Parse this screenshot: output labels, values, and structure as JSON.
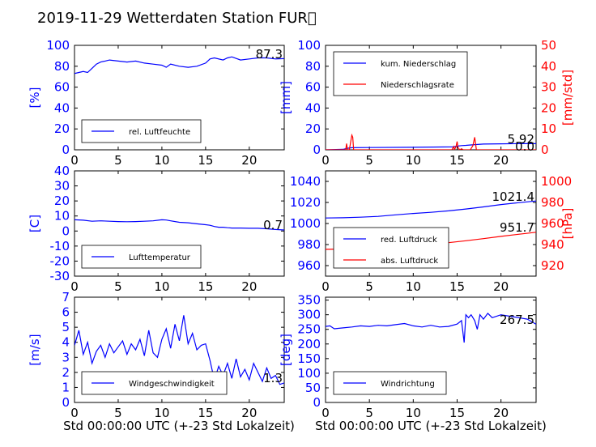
{
  "colors": {
    "left_axis": "#0000ff",
    "right_axis": "#ff0000",
    "line_blue": "#0000ff",
    "line_red": "#ff0000"
  },
  "title": "2019-11-29 Wetterdaten Station FUR\u0000",
  "xlabel": "Std 00:00:00 UTC (+-23 Std Lokalzeit)",
  "chart_data": [
    {
      "id": "humidity",
      "type": "line",
      "xlim": [
        0,
        24
      ],
      "x_ticks": [
        0,
        5,
        10,
        15,
        20
      ],
      "ylim": [
        0,
        100
      ],
      "y_ticks": [
        0,
        20,
        40,
        60,
        80,
        100
      ],
      "ylabel": "[%]",
      "legend": "bottom-left",
      "value_label": "87.3",
      "series": [
        {
          "name": "rel. Luftfeuchte",
          "color": "#0000ff",
          "axis": "left",
          "x": [
            0,
            0.5,
            1,
            1.5,
            2,
            2.5,
            3,
            3.5,
            4,
            5,
            6,
            7,
            8,
            9,
            10,
            10.5,
            11,
            12,
            13,
            14,
            15,
            15.5,
            16,
            17,
            17.5,
            18,
            19,
            20,
            21,
            22,
            23,
            24
          ],
          "y": [
            73,
            74,
            75,
            74,
            78,
            82,
            84,
            85,
            86,
            85,
            84,
            85,
            83,
            82,
            81,
            79,
            82,
            80,
            79,
            80,
            83,
            87,
            88,
            86,
            88,
            89,
            86,
            87,
            88,
            88,
            87,
            87.3
          ]
        }
      ]
    },
    {
      "id": "precip",
      "type": "line",
      "xlim": [
        0,
        24
      ],
      "x_ticks": [
        0,
        5,
        10,
        15,
        20
      ],
      "ylim": [
        0,
        100
      ],
      "y_ticks": [
        0,
        20,
        40,
        60,
        80,
        100
      ],
      "ylabel": "[mm]",
      "y2lim": [
        0,
        50
      ],
      "y2_ticks": [
        0,
        10,
        20,
        30,
        40,
        50
      ],
      "y2label": "[mm/std]",
      "legend": "top-left",
      "value_label": "5.92",
      "value_label2": "0.0",
      "series": [
        {
          "name": "kum. Niederschlag",
          "color": "#0000ff",
          "axis": "left",
          "x": [
            0,
            2,
            2.5,
            3,
            5,
            10,
            14.5,
            15,
            15.5,
            16,
            17,
            18,
            20,
            22,
            24
          ],
          "y": [
            0,
            0.5,
            1.5,
            2,
            2.2,
            2.4,
            2.8,
            3.5,
            4,
            4.3,
            5,
            5.5,
            5.7,
            5.9,
            5.92
          ]
        },
        {
          "name": "Niederschlagsrate",
          "color": "#ff0000",
          "axis": "right",
          "x": [
            0,
            2,
            2.3,
            2.4,
            2.5,
            2.7,
            2.8,
            3,
            3.1,
            3.2,
            3.4,
            5,
            10,
            14.4,
            14.6,
            14.7,
            14.9,
            15,
            15.1,
            15.3,
            15.5,
            15.7,
            16,
            16.5,
            16.8,
            17,
            17.2,
            17.5,
            20,
            24
          ],
          "y": [
            0,
            0,
            0,
            3,
            0,
            0,
            2,
            7,
            6,
            0,
            0,
            0,
            0,
            0,
            1.5,
            0,
            2,
            4,
            1,
            0,
            0.5,
            0,
            0,
            0,
            2,
            6,
            0,
            0,
            0,
            0
          ]
        }
      ]
    },
    {
      "id": "temperature",
      "type": "line",
      "xlim": [
        0,
        24
      ],
      "x_ticks": [
        0,
        5,
        10,
        15,
        20
      ],
      "ylim": [
        -30,
        40
      ],
      "y_ticks": [
        -30,
        -20,
        -10,
        0,
        10,
        20,
        30,
        40
      ],
      "ylabel": "[C]",
      "legend": "bottom-left",
      "value_label": "0.7",
      "series": [
        {
          "name": "Lufttemperatur",
          "color": "#0000ff",
          "axis": "left",
          "x": [
            0,
            1,
            2,
            3,
            4,
            5,
            6,
            7,
            8,
            9,
            10,
            10.5,
            11,
            12,
            13,
            14,
            15,
            15.5,
            16,
            16.5,
            17,
            17.5,
            18,
            19,
            20,
            21,
            22,
            23,
            24
          ],
          "y": [
            7.5,
            7.2,
            6.5,
            6.8,
            6.5,
            6.3,
            6.2,
            6.3,
            6.5,
            6.8,
            7.5,
            7.3,
            6.8,
            5.8,
            5.5,
            4.8,
            4.2,
            3.8,
            3,
            2.5,
            2.5,
            2.2,
            2,
            2,
            1.8,
            1.8,
            1.5,
            1,
            0.7
          ]
        }
      ]
    },
    {
      "id": "pressure",
      "type": "line",
      "xlim": [
        0,
        24
      ],
      "x_ticks": [
        0,
        5,
        10,
        15,
        20
      ],
      "ylim": [
        950,
        1050
      ],
      "y_ticks": [
        960,
        980,
        1000,
        1020,
        1040
      ],
      "ylabel": "",
      "y2lim": [
        910,
        1010
      ],
      "y2_ticks": [
        920,
        940,
        960,
        980,
        1000
      ],
      "y2label": "[hPa]",
      "legend": "bottom-left",
      "value_label": "1021.4",
      "value_label2": "951.7",
      "series": [
        {
          "name": "red. Luftdruck",
          "color": "#0000ff",
          "axis": "left",
          "x": [
            0,
            2,
            4,
            6,
            8,
            10,
            12,
            14,
            16,
            18,
            20,
            22,
            24
          ],
          "y": [
            1005.2,
            1005.5,
            1006,
            1006.8,
            1008.2,
            1009.5,
            1010.6,
            1012,
            1013.8,
            1015.8,
            1018,
            1019.8,
            1021.4
          ]
        },
        {
          "name": "abs. Luftdruck",
          "color": "#ff0000",
          "axis": "right",
          "x": [
            0,
            2,
            4,
            6,
            8,
            10,
            12,
            14,
            16,
            18,
            20,
            22,
            24
          ],
          "y": [
            935.5,
            935.8,
            936.3,
            937,
            938.2,
            939.2,
            940.3,
            941.8,
            943.6,
            945.6,
            947.8,
            949.8,
            951.7
          ]
        }
      ]
    },
    {
      "id": "windspeed",
      "type": "line",
      "xlim": [
        0,
        24
      ],
      "x_ticks": [
        0,
        5,
        10,
        15,
        20
      ],
      "ylim": [
        0,
        7
      ],
      "y_ticks": [
        0,
        1,
        2,
        3,
        4,
        5,
        6,
        7
      ],
      "ylabel": "[m/s]",
      "legend": "bottom-left",
      "value_label": "1.3",
      "series": [
        {
          "name": "Windgeschwindigkeit",
          "color": "#0000ff",
          "axis": "left",
          "x": [
            0,
            0.5,
            1,
            1.5,
            2,
            2.5,
            3,
            3.5,
            4,
            4.5,
            5,
            5.5,
            6,
            6.5,
            7,
            7.5,
            8,
            8.5,
            9,
            9.5,
            10,
            10.5,
            11,
            11.5,
            12,
            12.5,
            13,
            13.5,
            14,
            14.5,
            15,
            15.5,
            16,
            16.5,
            17,
            17.5,
            18,
            18.5,
            19,
            19.5,
            20,
            20.5,
            21,
            21.5,
            22,
            22.5,
            23,
            23.5,
            24
          ],
          "y": [
            3.8,
            4.8,
            3.2,
            4.0,
            2.6,
            3.4,
            3.8,
            3.0,
            3.9,
            3.3,
            3.7,
            4.1,
            3.2,
            3.9,
            3.5,
            4.2,
            3.1,
            4.8,
            3.3,
            3.0,
            4.2,
            4.9,
            3.6,
            5.2,
            4.1,
            5.8,
            3.9,
            4.6,
            3.5,
            3.8,
            3.9,
            2.8,
            1.5,
            2.4,
            1.8,
            2.6,
            1.6,
            2.9,
            1.7,
            2.2,
            1.5,
            2.6,
            2.0,
            1.4,
            2.3,
            1.6,
            1.8,
            1.2,
            1.3
          ]
        }
      ]
    },
    {
      "id": "winddir",
      "type": "line",
      "xlim": [
        0,
        24
      ],
      "x_ticks": [
        0,
        5,
        10,
        15,
        20
      ],
      "ylim": [
        0,
        360
      ],
      "y_ticks": [
        0,
        50,
        100,
        150,
        200,
        250,
        300,
        350
      ],
      "ylabel": "[deg]",
      "legend": "bottom-left",
      "value_label": "267.5",
      "series": [
        {
          "name": "Windrichtung",
          "color": "#0000ff",
          "axis": "left",
          "x": [
            0,
            0.5,
            1,
            2,
            3,
            4,
            5,
            6,
            7,
            8,
            9,
            10,
            11,
            12,
            13,
            14,
            15,
            15.5,
            15.8,
            16,
            16.3,
            16.6,
            17,
            17.3,
            17.6,
            18,
            18.5,
            19,
            20,
            21,
            22,
            23,
            24
          ],
          "y": [
            260,
            262,
            252,
            255,
            258,
            262,
            260,
            264,
            262,
            266,
            270,
            262,
            258,
            264,
            258,
            260,
            268,
            280,
            205,
            300,
            290,
            300,
            280,
            250,
            300,
            285,
            305,
            290,
            300,
            295,
            290,
            285,
            267.5
          ]
        }
      ]
    }
  ]
}
